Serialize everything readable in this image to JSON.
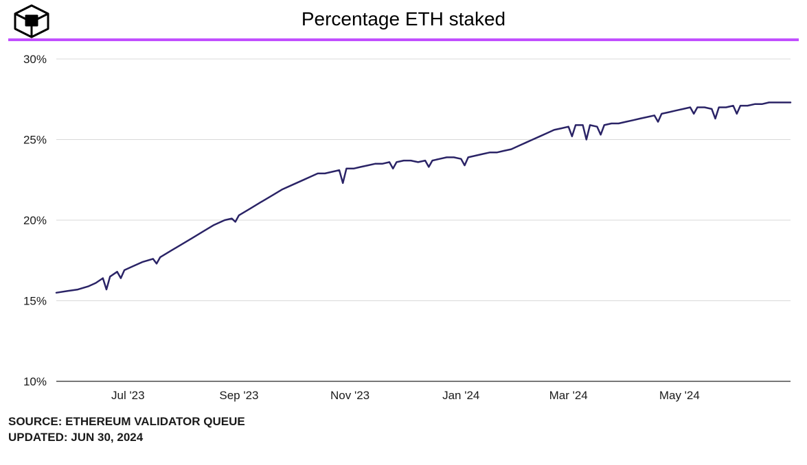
{
  "title": "Percentage ETH staked",
  "source_line": "SOURCE: ETHEREUM VALIDATOR QUEUE",
  "updated_line": "UPDATED: JUN 30, 2024",
  "accent_color": "#c14fff",
  "chart": {
    "type": "line",
    "background_color": "#ffffff",
    "grid_color": "#d9d9d9",
    "axis_color": "#4a4a4a",
    "line_color": "#2a2366",
    "line_width": 2.5,
    "label_color": "#1a1a1a",
    "label_fontsize": 17,
    "title_fontsize": 28,
    "ylim": [
      10,
      30
    ],
    "ytick_step": 5,
    "ytick_labels": [
      "10%",
      "15%",
      "20%",
      "25%",
      "30%"
    ],
    "xlim": [
      0,
      410
    ],
    "xtick_positions": [
      40,
      102,
      164,
      226,
      286,
      348
    ],
    "xtick_labels": [
      "Jul '23",
      "Sep '23",
      "Nov '23",
      "Jan '24",
      "Mar '24",
      "May '24"
    ],
    "series": [
      {
        "x": 0,
        "y": 15.5
      },
      {
        "x": 6,
        "y": 15.6
      },
      {
        "x": 12,
        "y": 15.7
      },
      {
        "x": 18,
        "y": 15.9
      },
      {
        "x": 22,
        "y": 16.1
      },
      {
        "x": 26,
        "y": 16.4
      },
      {
        "x": 28,
        "y": 15.7
      },
      {
        "x": 30,
        "y": 16.5
      },
      {
        "x": 34,
        "y": 16.8
      },
      {
        "x": 36,
        "y": 16.4
      },
      {
        "x": 38,
        "y": 16.9
      },
      {
        "x": 42,
        "y": 17.1
      },
      {
        "x": 48,
        "y": 17.4
      },
      {
        "x": 54,
        "y": 17.6
      },
      {
        "x": 56,
        "y": 17.3
      },
      {
        "x": 58,
        "y": 17.7
      },
      {
        "x": 64,
        "y": 18.1
      },
      {
        "x": 70,
        "y": 18.5
      },
      {
        "x": 76,
        "y": 18.9
      },
      {
        "x": 82,
        "y": 19.3
      },
      {
        "x": 88,
        "y": 19.7
      },
      {
        "x": 94,
        "y": 20.0
      },
      {
        "x": 98,
        "y": 20.1
      },
      {
        "x": 100,
        "y": 19.9
      },
      {
        "x": 102,
        "y": 20.3
      },
      {
        "x": 108,
        "y": 20.7
      },
      {
        "x": 114,
        "y": 21.1
      },
      {
        "x": 120,
        "y": 21.5
      },
      {
        "x": 126,
        "y": 21.9
      },
      {
        "x": 132,
        "y": 22.2
      },
      {
        "x": 138,
        "y": 22.5
      },
      {
        "x": 142,
        "y": 22.7
      },
      {
        "x": 146,
        "y": 22.9
      },
      {
        "x": 150,
        "y": 22.9
      },
      {
        "x": 154,
        "y": 23.0
      },
      {
        "x": 158,
        "y": 23.1
      },
      {
        "x": 160,
        "y": 22.3
      },
      {
        "x": 162,
        "y": 23.2
      },
      {
        "x": 166,
        "y": 23.2
      },
      {
        "x": 170,
        "y": 23.3
      },
      {
        "x": 174,
        "y": 23.4
      },
      {
        "x": 178,
        "y": 23.5
      },
      {
        "x": 182,
        "y": 23.5
      },
      {
        "x": 186,
        "y": 23.6
      },
      {
        "x": 188,
        "y": 23.2
      },
      {
        "x": 190,
        "y": 23.6
      },
      {
        "x": 194,
        "y": 23.7
      },
      {
        "x": 198,
        "y": 23.7
      },
      {
        "x": 202,
        "y": 23.6
      },
      {
        "x": 206,
        "y": 23.7
      },
      {
        "x": 208,
        "y": 23.3
      },
      {
        "x": 210,
        "y": 23.7
      },
      {
        "x": 214,
        "y": 23.8
      },
      {
        "x": 218,
        "y": 23.9
      },
      {
        "x": 222,
        "y": 23.9
      },
      {
        "x": 226,
        "y": 23.8
      },
      {
        "x": 228,
        "y": 23.4
      },
      {
        "x": 230,
        "y": 23.9
      },
      {
        "x": 234,
        "y": 24.0
      },
      {
        "x": 238,
        "y": 24.1
      },
      {
        "x": 242,
        "y": 24.2
      },
      {
        "x": 246,
        "y": 24.2
      },
      {
        "x": 250,
        "y": 24.3
      },
      {
        "x": 254,
        "y": 24.4
      },
      {
        "x": 258,
        "y": 24.6
      },
      {
        "x": 262,
        "y": 24.8
      },
      {
        "x": 266,
        "y": 25.0
      },
      {
        "x": 270,
        "y": 25.2
      },
      {
        "x": 274,
        "y": 25.4
      },
      {
        "x": 278,
        "y": 25.6
      },
      {
        "x": 282,
        "y": 25.7
      },
      {
        "x": 286,
        "y": 25.8
      },
      {
        "x": 288,
        "y": 25.2
      },
      {
        "x": 290,
        "y": 25.9
      },
      {
        "x": 294,
        "y": 25.9
      },
      {
        "x": 296,
        "y": 25.0
      },
      {
        "x": 298,
        "y": 25.9
      },
      {
        "x": 302,
        "y": 25.8
      },
      {
        "x": 304,
        "y": 25.3
      },
      {
        "x": 306,
        "y": 25.9
      },
      {
        "x": 310,
        "y": 26.0
      },
      {
        "x": 314,
        "y": 26.0
      },
      {
        "x": 318,
        "y": 26.1
      },
      {
        "x": 322,
        "y": 26.2
      },
      {
        "x": 326,
        "y": 26.3
      },
      {
        "x": 330,
        "y": 26.4
      },
      {
        "x": 334,
        "y": 26.5
      },
      {
        "x": 336,
        "y": 26.1
      },
      {
        "x": 338,
        "y": 26.6
      },
      {
        "x": 342,
        "y": 26.7
      },
      {
        "x": 346,
        "y": 26.8
      },
      {
        "x": 350,
        "y": 26.9
      },
      {
        "x": 354,
        "y": 27.0
      },
      {
        "x": 356,
        "y": 26.6
      },
      {
        "x": 358,
        "y": 27.0
      },
      {
        "x": 362,
        "y": 27.0
      },
      {
        "x": 366,
        "y": 26.9
      },
      {
        "x": 368,
        "y": 26.3
      },
      {
        "x": 370,
        "y": 27.0
      },
      {
        "x": 374,
        "y": 27.0
      },
      {
        "x": 378,
        "y": 27.1
      },
      {
        "x": 380,
        "y": 26.6
      },
      {
        "x": 382,
        "y": 27.1
      },
      {
        "x": 386,
        "y": 27.1
      },
      {
        "x": 390,
        "y": 27.2
      },
      {
        "x": 394,
        "y": 27.2
      },
      {
        "x": 398,
        "y": 27.3
      },
      {
        "x": 402,
        "y": 27.3
      },
      {
        "x": 406,
        "y": 27.3
      },
      {
        "x": 410,
        "y": 27.3
      }
    ]
  }
}
